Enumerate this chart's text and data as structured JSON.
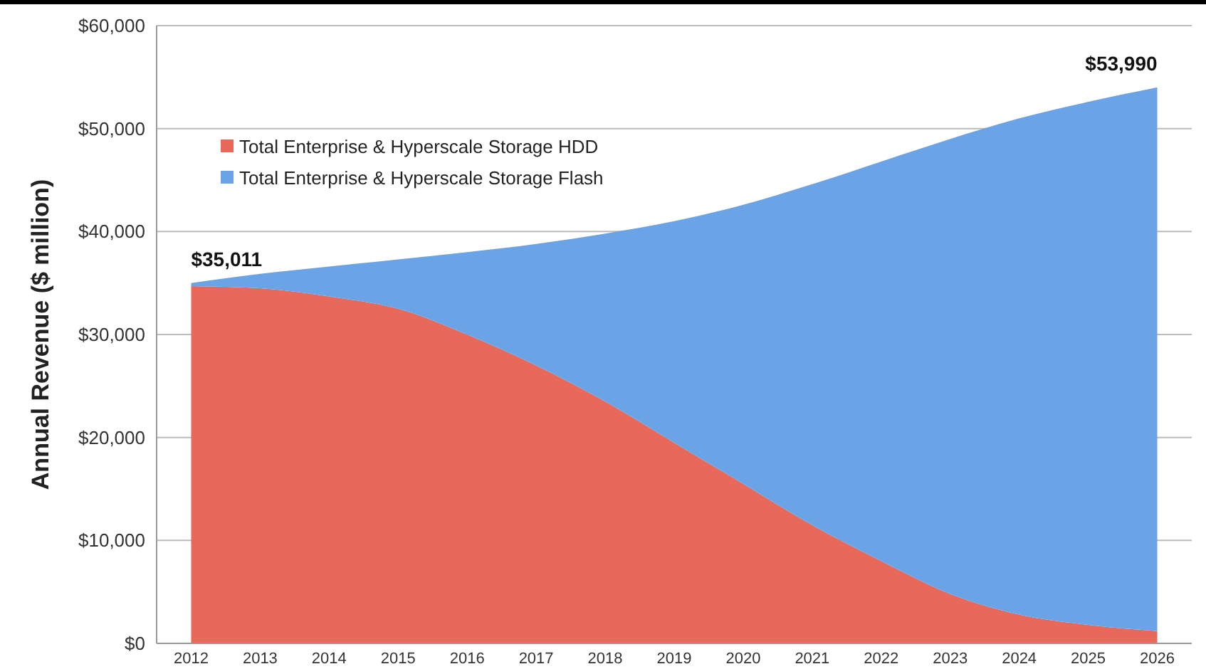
{
  "chart_data": {
    "type": "area",
    "stacked": true,
    "ylabel": "Annual Revenue ($ million)",
    "categories": [
      "2012",
      "2013",
      "2014",
      "2015",
      "2016",
      "2017",
      "2018",
      "2019",
      "2020",
      "2021",
      "2022",
      "2023",
      "2024",
      "2025",
      "2026"
    ],
    "series": [
      {
        "name": "Total Enterprise & Hyperscale Storage HDD",
        "color": "#e8685a",
        "values": [
          34700,
          34500,
          33700,
          32500,
          30000,
          27000,
          23500,
          19500,
          15500,
          11500,
          8000,
          4800,
          2800,
          1800,
          1200
        ]
      },
      {
        "name": "Total Enterprise & Hyperscale Storage Flash",
        "color": "#6aa3e6",
        "values": [
          300,
          1400,
          2900,
          4800,
          8000,
          11800,
          16300,
          21500,
          27100,
          33100,
          38800,
          44200,
          48200,
          50800,
          52800
        ]
      }
    ],
    "ylim": [
      0,
      60000
    ],
    "yticks": [
      {
        "value": 0,
        "label": "$0"
      },
      {
        "value": 10000,
        "label": "$10,000"
      },
      {
        "value": 20000,
        "label": "$20,000"
      },
      {
        "value": 30000,
        "label": "$30,000"
      },
      {
        "value": 40000,
        "label": "$40,000"
      },
      {
        "value": 50000,
        "label": "$50,000"
      },
      {
        "value": 60000,
        "label": "$60,000"
      }
    ],
    "grid": "y",
    "legend": "top left",
    "annotations": [
      {
        "text": "$35,011",
        "x": "2012",
        "y": 35011
      },
      {
        "text": "$53,990",
        "x": "2026",
        "y": 53990
      }
    ]
  }
}
